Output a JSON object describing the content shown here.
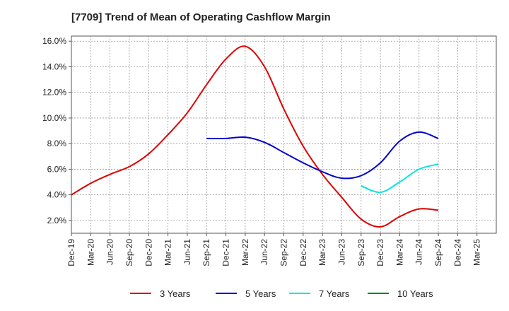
{
  "title": "[7709]  Trend of Mean of Operating Cashflow Margin",
  "colors": {
    "grid": "#999999",
    "axis": "#555555",
    "text": "#222222"
  },
  "chart_data": {
    "type": "line",
    "title": "[7709]  Trend of Mean of Operating Cashflow Margin",
    "xlabel": "",
    "ylabel": "",
    "x_tick_labels": [
      "Dec-19",
      "Mar-20",
      "Jun-20",
      "Sep-20",
      "Dec-20",
      "Mar-21",
      "Jun-21",
      "Sep-21",
      "Dec-21",
      "Mar-22",
      "Jun-22",
      "Sep-22",
      "Dec-22",
      "Mar-23",
      "Jun-23",
      "Sep-23",
      "Dec-23",
      "Mar-24",
      "Jun-24",
      "Sep-24",
      "Dec-24",
      "Mar-25"
    ],
    "y_tick_labels": [
      "2.0%",
      "4.0%",
      "6.0%",
      "8.0%",
      "10.0%",
      "12.0%",
      "14.0%",
      "16.0%"
    ],
    "y_ticks": [
      2,
      4,
      6,
      8,
      10,
      12,
      14,
      16
    ],
    "ylim": [
      1.0,
      16.4
    ],
    "grid": true,
    "legend_position": "bottom",
    "series": [
      {
        "name": "3 Years",
        "color": "#dd0000",
        "points": [
          [
            "Dec-19",
            4.0
          ],
          [
            "Mar-20",
            4.9
          ],
          [
            "Jun-20",
            5.6
          ],
          [
            "Sep-20",
            6.2
          ],
          [
            "Dec-20",
            7.2
          ],
          [
            "Mar-21",
            8.7
          ],
          [
            "Jun-21",
            10.4
          ],
          [
            "Sep-21",
            12.6
          ],
          [
            "Dec-21",
            14.6
          ],
          [
            "Mar-22",
            15.6
          ],
          [
            "Jun-22",
            14.0
          ],
          [
            "Sep-22",
            10.7
          ],
          [
            "Dec-22",
            7.8
          ],
          [
            "Mar-23",
            5.6
          ],
          [
            "Jun-23",
            3.8
          ],
          [
            "Sep-23",
            2.1
          ],
          [
            "Dec-23",
            1.5
          ],
          [
            "Mar-24",
            2.3
          ],
          [
            "Jun-24",
            2.9
          ],
          [
            "Sep-24",
            2.8
          ]
        ]
      },
      {
        "name": "5 Years",
        "color": "#0000cc",
        "points": [
          [
            "Sep-21",
            8.4
          ],
          [
            "Dec-21",
            8.4
          ],
          [
            "Mar-22",
            8.5
          ],
          [
            "Jun-22",
            8.1
          ],
          [
            "Sep-22",
            7.3
          ],
          [
            "Dec-22",
            6.5
          ],
          [
            "Mar-23",
            5.8
          ],
          [
            "Jun-23",
            5.3
          ],
          [
            "Sep-23",
            5.5
          ],
          [
            "Dec-23",
            6.5
          ],
          [
            "Mar-24",
            8.2
          ],
          [
            "Jun-24",
            8.9
          ],
          [
            "Sep-24",
            8.4
          ]
        ]
      },
      {
        "name": "7 Years",
        "color": "#00e5e5",
        "points": [
          [
            "Sep-23",
            4.7
          ],
          [
            "Dec-23",
            4.2
          ],
          [
            "Mar-24",
            5.0
          ],
          [
            "Jun-24",
            6.0
          ],
          [
            "Sep-24",
            6.4
          ]
        ]
      },
      {
        "name": "10 Years",
        "color": "#008800",
        "points": []
      }
    ]
  }
}
